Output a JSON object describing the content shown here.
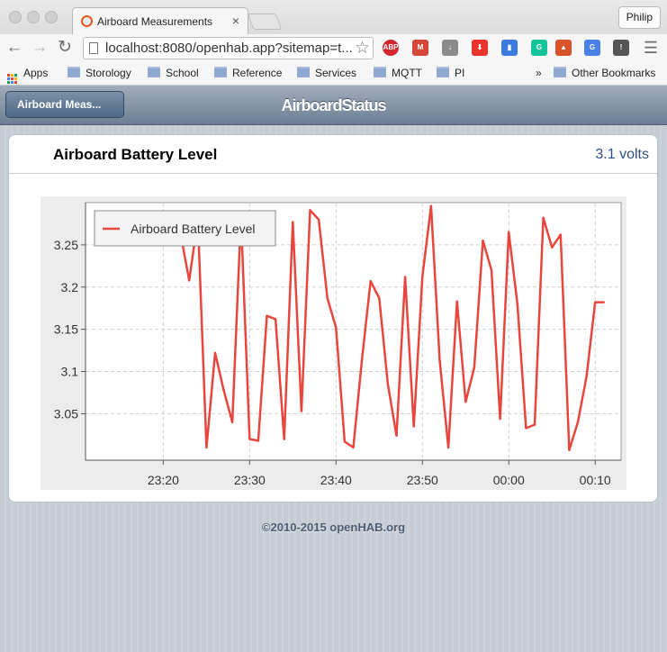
{
  "browser": {
    "tab_title": "Airboard Measurements",
    "tab_close": "×",
    "profile_name": "Philip",
    "url": "localhost:8080/openhab.app?sitemap=t...",
    "extensions": [
      {
        "name": "adblock-plus-icon",
        "label": "ABP",
        "color": "#d2262c"
      },
      {
        "name": "gmail-icon",
        "label": "M",
        "color": "#d44638"
      },
      {
        "name": "download-icon",
        "label": "↓",
        "color": "#8a8a8a"
      },
      {
        "name": "save-icon",
        "label": "⬇",
        "color": "#e8342a"
      },
      {
        "name": "bookmark-ext-icon",
        "label": "▮",
        "color": "#3b7be0"
      },
      {
        "name": "grammarly-icon",
        "label": "G",
        "color": "#15c39a"
      },
      {
        "name": "reader-icon",
        "label": "▲",
        "color": "#d9542b"
      },
      {
        "name": "translate-icon",
        "label": "G",
        "color": "#4a80e8"
      },
      {
        "name": "info-icon",
        "label": "!",
        "color": "#555555"
      }
    ]
  },
  "bookmarks": {
    "apps_label": "Apps",
    "items": [
      "Storology",
      "School",
      "Reference",
      "Services",
      "MQTT",
      "PI"
    ],
    "overflow": "»",
    "other": "Other Bookmarks"
  },
  "openhab": {
    "back_label": "Airboard Meas...",
    "page_title": "AirboardStatus",
    "item_label": "Airboard Battery Level",
    "item_value": "3.1 volts",
    "footer": "©2010-2015 openHAB.org"
  },
  "chart_data": {
    "type": "line",
    "title": "",
    "xlabel": "",
    "ylabel": "",
    "legend": "top-left",
    "grid": true,
    "series_color": "#e8463d",
    "xlim": [
      "23:11",
      "00:13"
    ],
    "ylim": [
      2.995,
      3.3
    ],
    "xticks": [
      "23:20",
      "23:30",
      "23:40",
      "23:50",
      "00:00",
      "00:10"
    ],
    "yticks": [
      "3.25",
      "3.2",
      "3.15",
      "3.1",
      "3.05"
    ],
    "series": [
      {
        "name": "Airboard Battery Level",
        "x": [
          "23:22:00",
          "23:23:00",
          "23:24:00",
          "23:25:00",
          "23:26:00",
          "23:27:00",
          "23:28:00",
          "23:29:00",
          "23:30:00",
          "23:31:00",
          "23:32:00",
          "23:33:00",
          "23:34:00",
          "23:35:00",
          "23:36:00",
          "23:37:00",
          "23:38:00",
          "23:39:00",
          "23:40:00",
          "23:41:00",
          "23:42:00",
          "23:43:00",
          "23:44:00",
          "23:45:00",
          "23:46:00",
          "23:47:00",
          "23:48:00",
          "23:49:00",
          "23:50:00",
          "23:51:00",
          "23:52:00",
          "23:53:00",
          "23:54:00",
          "23:55:00",
          "23:56:00",
          "23:57:00",
          "23:58:00",
          "23:59:00",
          "00:00:00",
          "00:01:00",
          "00:02:00",
          "00:03:00",
          "00:04:00",
          "00:05:00",
          "00:06:00",
          "00:07:00",
          "00:08:00",
          "00:09:00",
          "00:10:00",
          "00:11:00"
        ],
        "y": [
          3.263,
          3.208,
          3.28,
          3.01,
          3.122,
          3.078,
          3.04,
          3.284,
          3.02,
          3.018,
          3.166,
          3.162,
          3.02,
          3.277,
          3.053,
          3.291,
          3.28,
          3.187,
          3.152,
          3.017,
          3.01,
          3.114,
          3.207,
          3.187,
          3.085,
          3.024,
          3.212,
          3.035,
          3.213,
          3.296,
          3.113,
          3.01,
          3.183,
          3.064,
          3.105,
          3.255,
          3.22,
          3.044,
          3.265,
          3.18,
          3.033,
          3.037,
          3.282,
          3.247,
          3.262,
          3.007,
          3.04,
          3.094,
          3.182,
          3.182
        ]
      }
    ]
  }
}
